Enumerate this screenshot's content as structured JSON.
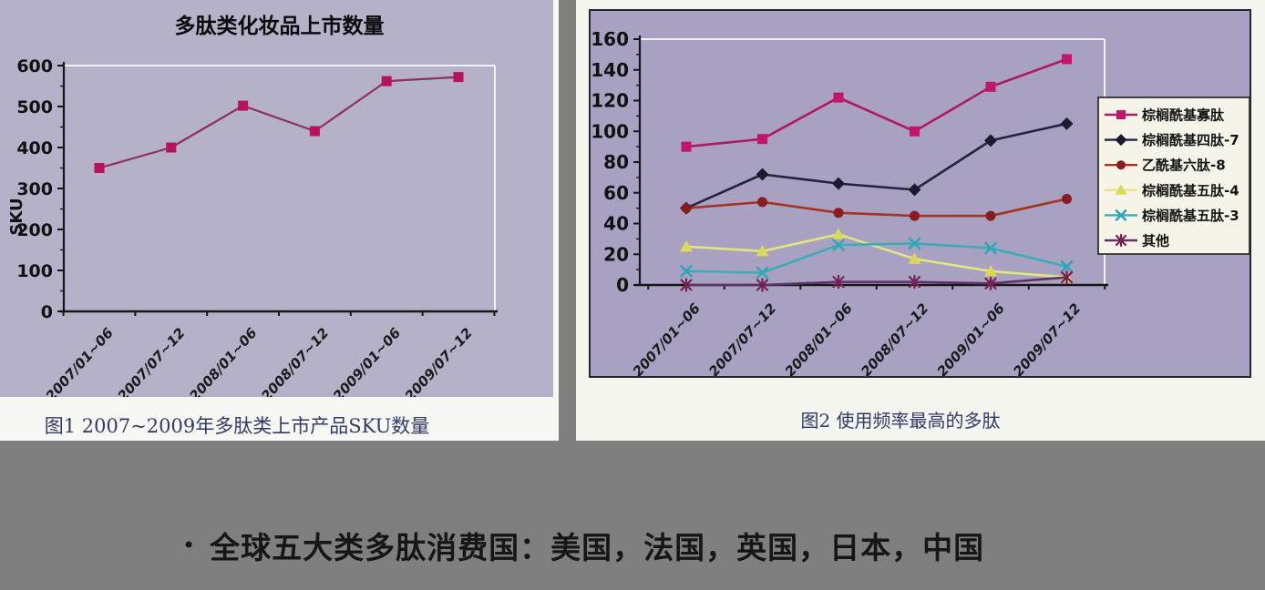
{
  "page": {
    "background_color": "#7f7f7f",
    "left_panel_color": "#b5b1c9",
    "right_panel_color": "#a8a1c2",
    "card_color": "#f5f6f0",
    "caption_color": "#323b66"
  },
  "figure1": {
    "caption": "图1 2007~2009年多肽类上市产品SKU数量"
  },
  "figure2": {
    "caption": "图2 使用频率最高的多肽"
  },
  "note": {
    "bullet": "•",
    "text": "全球五大类多肽消费国：美国，法国，英国，日本，中国"
  },
  "chart_data": [
    {
      "type": "line",
      "title": "多肽类化妆品上市数量",
      "xlabel": "",
      "ylabel": "SKU",
      "categories": [
        "2007/01~06",
        "2007/07~12",
        "2008/01~06",
        "2008/07~12",
        "2009/01~06",
        "2009/07~12"
      ],
      "series": [
        {
          "name": "SKU",
          "values": [
            350,
            400,
            502,
            440,
            562,
            572
          ],
          "marker": "square",
          "marker_color": "#b8125f",
          "line_color": "#8d3060"
        }
      ],
      "ylim": [
        0,
        600
      ],
      "ytick_step": 100,
      "grid": false,
      "legend_position": "none",
      "axis_color": "#161616",
      "frame_color": "#f4f2f8"
    },
    {
      "type": "line",
      "title": "",
      "xlabel": "",
      "ylabel": "",
      "categories": [
        "2007/01~06",
        "2007/07~12",
        "2008/01~06",
        "2008/07~12",
        "2009/01~06",
        "2009/07~12"
      ],
      "series": [
        {
          "name": "棕榈酰基寡肽",
          "values": [
            90,
            95,
            122,
            100,
            129,
            147
          ],
          "marker": "square",
          "marker_color": "#c2166a",
          "line_color": "#ad1a5e"
        },
        {
          "name": "棕榈酰基四肽-7",
          "values": [
            50,
            72,
            66,
            62,
            94,
            105
          ],
          "marker": "diamond",
          "marker_color": "#1b1b30",
          "line_color": "#23233a"
        },
        {
          "name": "乙酰基六肽-8",
          "values": [
            50,
            54,
            47,
            45,
            45,
            56
          ],
          "marker": "circle",
          "marker_color": "#871d1d",
          "line_color": "#a33422"
        },
        {
          "name": "棕榈酰基五肽-4",
          "values": [
            25,
            22,
            33,
            17,
            9,
            5
          ],
          "marker": "triangle",
          "marker_color": "#d9d955",
          "line_color": "#e4e480"
        },
        {
          "name": "棕榈酰基五肽-3",
          "values": [
            9,
            8,
            26,
            27,
            24,
            12
          ],
          "marker": "x",
          "marker_color": "#2da6b6",
          "line_color": "#3aacb8"
        },
        {
          "name": "其他",
          "values": [
            0,
            0,
            2,
            2,
            1,
            5
          ],
          "marker": "asterisk",
          "marker_color": "#79204e",
          "line_color": "#5c3366"
        }
      ],
      "ylim": [
        0,
        160
      ],
      "ytick_step": 20,
      "grid": false,
      "legend_position": "right",
      "legend_bg": "#f6f3e9",
      "axis_color": "#161616",
      "frame_color": "#f4f2f8"
    }
  ]
}
